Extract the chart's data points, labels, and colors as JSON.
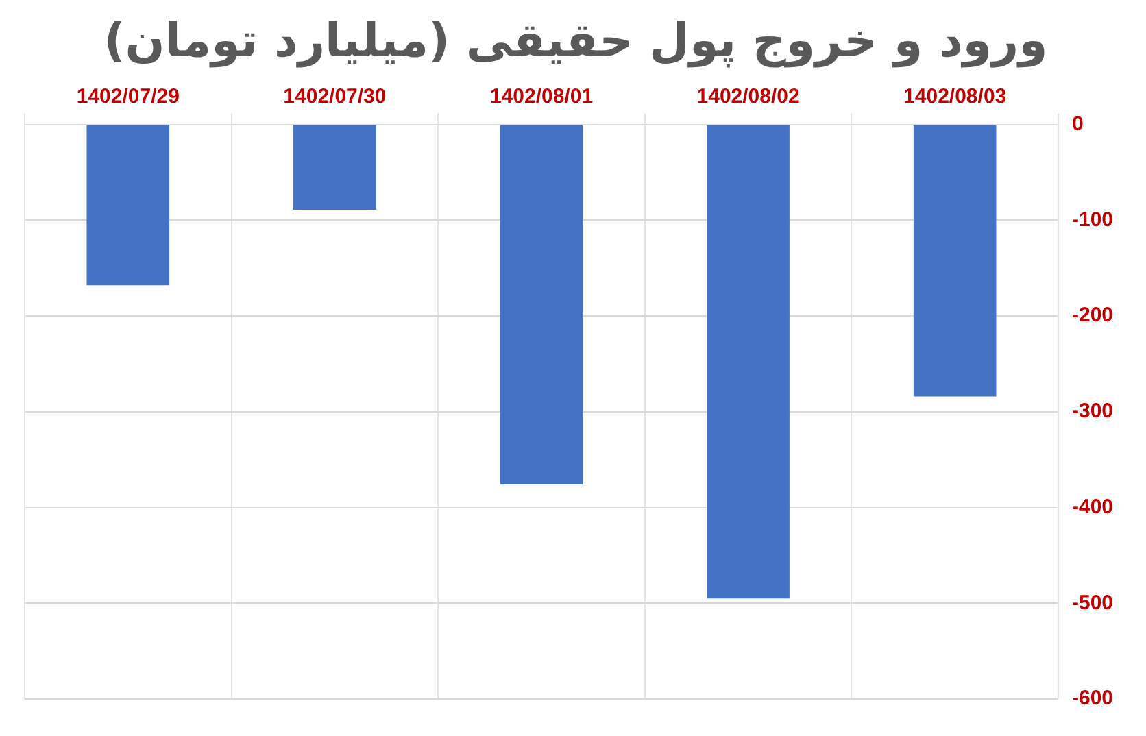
{
  "chart_data": {
    "type": "bar",
    "title": "ورود و خروج پول حقیقی (میلیارد تومان)",
    "categories": [
      "1402/07/29",
      "1402/07/30",
      "1402/08/01",
      "1402/08/02",
      "1402/08/03"
    ],
    "values": [
      -168,
      -89,
      -376,
      -495,
      -284
    ],
    "color": "#4472c4",
    "ylim": [
      -600,
      0
    ],
    "yticks": [
      -600,
      -500,
      -400,
      -300,
      -200,
      -100,
      0
    ],
    "grid": true,
    "legend": false
  }
}
